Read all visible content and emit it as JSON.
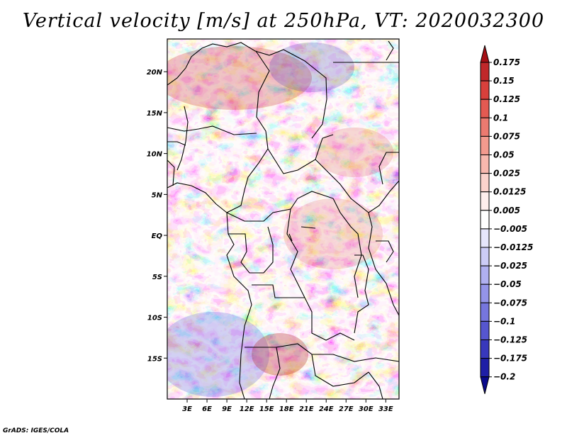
{
  "chart_data": {
    "type": "heatmap",
    "title": "Vertical velocity [m/s] at 250hPa, VT: 2020032300",
    "variable": "Vertical velocity",
    "units": "m/s",
    "level": "250hPa",
    "valid_time": "2020032300",
    "xlabel": "",
    "ylabel": "",
    "x_range": [
      0,
      35
    ],
    "y_range": [
      -20,
      24
    ],
    "x_ticks": [
      3,
      6,
      9,
      12,
      15,
      18,
      21,
      24,
      27,
      30,
      33
    ],
    "x_tick_labels": [
      "3E",
      "6E",
      "9E",
      "12E",
      "15E",
      "18E",
      "21E",
      "24E",
      "27E",
      "30E",
      "33E"
    ],
    "y_ticks": [
      20,
      15,
      10,
      5,
      0,
      -5,
      -10,
      -15
    ],
    "y_tick_labels": [
      "20N",
      "15N",
      "10N",
      "5N",
      "EQ",
      "5S",
      "10S",
      "15S"
    ],
    "colorbar": {
      "levels": [
        0.175,
        0.15,
        0.125,
        0.1,
        0.075,
        0.05,
        0.025,
        0.0125,
        0.005,
        -0.005,
        -0.0125,
        -0.025,
        -0.05,
        -0.075,
        -0.1,
        -0.125,
        -0.175,
        -0.2
      ],
      "labels": [
        "0.175",
        "0.15",
        "0.125",
        "0.1",
        "0.075",
        "0.05",
        "0.025",
        "0.0125",
        "0.005",
        "−0.005",
        "−0.0125",
        "−0.025",
        "−0.05",
        "−0.075",
        "−0.1",
        "−0.125",
        "−0.175",
        "−0.2"
      ],
      "colors": [
        "#a50f15",
        "#c0282a",
        "#d8403c",
        "#e35a52",
        "#ec7a70",
        "#f39a8e",
        "#f8b8ae",
        "#fbd3cc",
        "#feeeec",
        "#ffffff",
        "#e6e6fb",
        "#ccccf6",
        "#b0b0f0",
        "#9494e8",
        "#7676dd",
        "#5656cf",
        "#3838bc",
        "#1e1ea6",
        "#0a0a8c"
      ]
    },
    "projection": "latlon",
    "region": "Central Africa"
  },
  "credit": "GrADS: IGES/COLA",
  "colors": {
    "frame": "#000000",
    "background": "#ffffff"
  }
}
